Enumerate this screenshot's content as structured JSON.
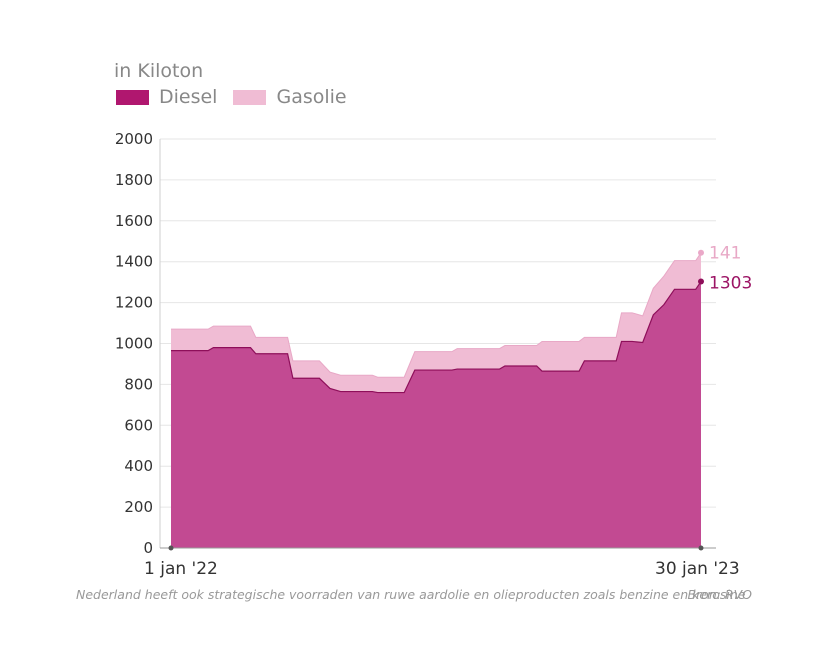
{
  "chart_data": {
    "type": "area",
    "stacked": true,
    "unit_label": "in Kiloton",
    "ylim": [
      0,
      2000
    ],
    "yticks": [
      0,
      200,
      400,
      600,
      800,
      1000,
      1200,
      1400,
      1600,
      1800,
      2000
    ],
    "grid": true,
    "legend_position": "top-left",
    "x_tick_labels": [
      "1 jan '22",
      "30 jan '23"
    ],
    "series": [
      {
        "name": "Diesel",
        "color": "#b0176f",
        "fill": "#c24a92",
        "end_label": "1303",
        "points": [
          [
            0,
            965
          ],
          [
            0.07,
            965
          ],
          [
            0.08,
            980
          ],
          [
            0.15,
            980
          ],
          [
            0.16,
            950
          ],
          [
            0.22,
            950
          ],
          [
            0.23,
            830
          ],
          [
            0.28,
            830
          ],
          [
            0.3,
            780
          ],
          [
            0.32,
            765
          ],
          [
            0.38,
            765
          ],
          [
            0.39,
            760
          ],
          [
            0.44,
            760
          ],
          [
            0.46,
            870
          ],
          [
            0.53,
            870
          ],
          [
            0.54,
            875
          ],
          [
            0.62,
            875
          ],
          [
            0.63,
            890
          ],
          [
            0.69,
            890
          ],
          [
            0.7,
            865
          ],
          [
            0.77,
            865
          ],
          [
            0.78,
            915
          ],
          [
            0.84,
            915
          ],
          [
            0.85,
            1010
          ],
          [
            0.87,
            1010
          ],
          [
            0.89,
            1005
          ],
          [
            0.91,
            1140
          ],
          [
            0.93,
            1190
          ],
          [
            0.95,
            1265
          ],
          [
            0.99,
            1265
          ],
          [
            1.0,
            1303
          ]
        ]
      },
      {
        "name": "Gasolie",
        "color": "#f0bcd4",
        "fill": "#f0bcd4",
        "end_label": "141",
        "totals": [
          [
            0,
            1070
          ],
          [
            0.07,
            1070
          ],
          [
            0.08,
            1085
          ],
          [
            0.15,
            1085
          ],
          [
            0.16,
            1030
          ],
          [
            0.22,
            1030
          ],
          [
            0.23,
            915
          ],
          [
            0.28,
            915
          ],
          [
            0.3,
            860
          ],
          [
            0.32,
            845
          ],
          [
            0.38,
            845
          ],
          [
            0.39,
            835
          ],
          [
            0.44,
            835
          ],
          [
            0.46,
            960
          ],
          [
            0.53,
            960
          ],
          [
            0.54,
            975
          ],
          [
            0.62,
            975
          ],
          [
            0.63,
            990
          ],
          [
            0.69,
            990
          ],
          [
            0.7,
            1010
          ],
          [
            0.77,
            1010
          ],
          [
            0.78,
            1030
          ],
          [
            0.84,
            1030
          ],
          [
            0.85,
            1150
          ],
          [
            0.87,
            1150
          ],
          [
            0.89,
            1135
          ],
          [
            0.91,
            1270
          ],
          [
            0.93,
            1330
          ],
          [
            0.95,
            1405
          ],
          [
            0.99,
            1405
          ],
          [
            1.0,
            1444
          ]
        ]
      }
    ]
  },
  "footnote": "Nederland heeft ook strategische voorraden van ruwe aardolie en olieproducten zoals benzine en kerosine",
  "source": "Bron: RVO"
}
